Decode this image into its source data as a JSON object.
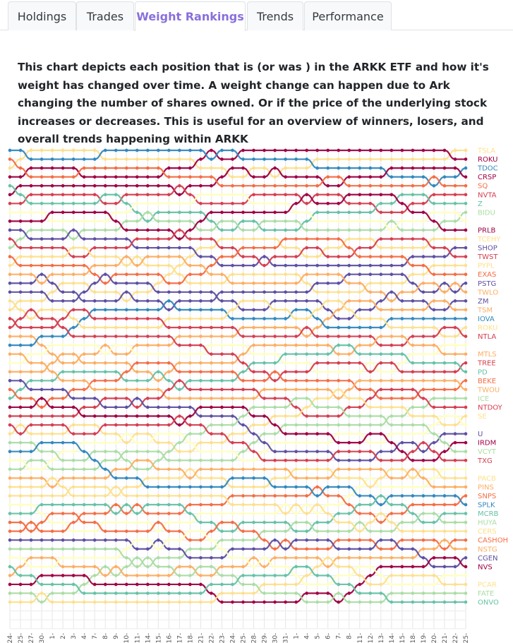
{
  "tabs": [
    {
      "label": "Holdings",
      "active": false
    },
    {
      "label": "Trades",
      "active": false
    },
    {
      "label": "Weight Rankings",
      "active": true
    },
    {
      "label": "Trends",
      "active": false
    },
    {
      "label": "Performance",
      "active": false
    }
  ],
  "description": "This chart depicts each position that is (or was ) in the ARKK ETF and how it's weight has changed over time. A weight change can happen due to Ark changing the number of shares owned. Or if the price of the underlying stock increases or decreases. This is useful for an overview of winners, losers, and overall trends happening within ARKK",
  "chart_data": {
    "type": "line",
    "subtype": "bump-rank",
    "x_tick_labels": [
      "24-",
      "25-",
      "27-",
      "30-",
      "1-",
      "2-",
      "3-",
      "4-",
      "7-",
      "8-",
      "9-",
      "10-",
      "11-",
      "14-",
      "15-",
      "16-",
      "17-",
      "18-",
      "21-",
      "22-",
      "23-",
      "24-",
      "25-",
      "28-",
      "29-",
      "30-",
      "31-",
      "1-",
      "4-",
      "5-",
      "6-",
      "7-",
      "8-",
      "11-",
      "12-",
      "13-",
      "14-",
      "15-",
      "18-",
      "19-",
      "20-",
      "21-",
      "22-",
      "25-"
    ],
    "tickers": [
      {
        "name": "TSLA",
        "color": "#fee08b"
      },
      {
        "name": "ROKU",
        "color": "#9e0142"
      },
      {
        "name": "TDOC",
        "color": "#3288bd"
      },
      {
        "name": "CRSP",
        "color": "#9e0142"
      },
      {
        "name": "SQ",
        "color": "#f46d43"
      },
      {
        "name": "NVTA",
        "color": "#d53e4f"
      },
      {
        "name": "Z",
        "color": "#66c2a5"
      },
      {
        "name": "BIDU",
        "color": "#abdda4"
      },
      {
        "name": "",
        "color": "#ffffbf"
      },
      {
        "name": "PRLB",
        "color": "#9e0142"
      },
      {
        "name": "TCEHY",
        "color": "#fee08b"
      },
      {
        "name": "SHOP",
        "color": "#5e4fa2"
      },
      {
        "name": "TWST",
        "color": "#d53e4f"
      },
      {
        "name": "PYPL",
        "color": "#fee08b"
      },
      {
        "name": "EXAS",
        "color": "#f46d43"
      },
      {
        "name": "PSTG",
        "color": "#5e4fa2"
      },
      {
        "name": "TWLO",
        "color": "#fdae61"
      },
      {
        "name": "ZM",
        "color": "#5e4fa2"
      },
      {
        "name": "TSM",
        "color": "#fdae61"
      },
      {
        "name": "IOVA",
        "color": "#3288bd"
      },
      {
        "name": "ROKU",
        "color": "#fee08b"
      },
      {
        "name": "NTLA",
        "color": "#d53e4f"
      },
      {
        "name": "",
        "color": "#ffffbf"
      },
      {
        "name": "MTLS",
        "color": "#fdae61"
      },
      {
        "name": "TREE",
        "color": "#d53e4f"
      },
      {
        "name": "PD",
        "color": "#66c2a5"
      },
      {
        "name": "BEKE",
        "color": "#f46d43"
      },
      {
        "name": "TWOU",
        "color": "#fdae61"
      },
      {
        "name": "ICE",
        "color": "#abdda4"
      },
      {
        "name": "NTDOY",
        "color": "#d53e4f"
      },
      {
        "name": "SE",
        "color": "#fee08b"
      },
      {
        "name": "",
        "color": "#ffffbf"
      },
      {
        "name": "U",
        "color": "#5e4fa2"
      },
      {
        "name": "IRDM",
        "color": "#9e0142"
      },
      {
        "name": "VCYT",
        "color": "#abdda4"
      },
      {
        "name": "TXG",
        "color": "#d53e4f"
      },
      {
        "name": "",
        "color": "#ffffbf"
      },
      {
        "name": "PACB",
        "color": "#fee08b"
      },
      {
        "name": "PINS",
        "color": "#fdae61"
      },
      {
        "name": "SNPS",
        "color": "#f46d43"
      },
      {
        "name": "SPLK",
        "color": "#3288bd"
      },
      {
        "name": "MCRB",
        "color": "#66c2a5"
      },
      {
        "name": "HUYA",
        "color": "#abdda4"
      },
      {
        "name": "CERS",
        "color": "#fee08b"
      },
      {
        "name": "CASHOH",
        "color": "#f46d43"
      },
      {
        "name": "NSTG",
        "color": "#fdae61"
      },
      {
        "name": "CGEN",
        "color": "#5e4fa2"
      },
      {
        "name": "NVS",
        "color": "#9e0142"
      },
      {
        "name": "",
        "color": "#ffffbf"
      },
      {
        "name": "PCAR",
        "color": "#fee08b"
      },
      {
        "name": "FATE",
        "color": "#abdda4"
      },
      {
        "name": "ONVO",
        "color": "#66c2a5"
      }
    ]
  }
}
